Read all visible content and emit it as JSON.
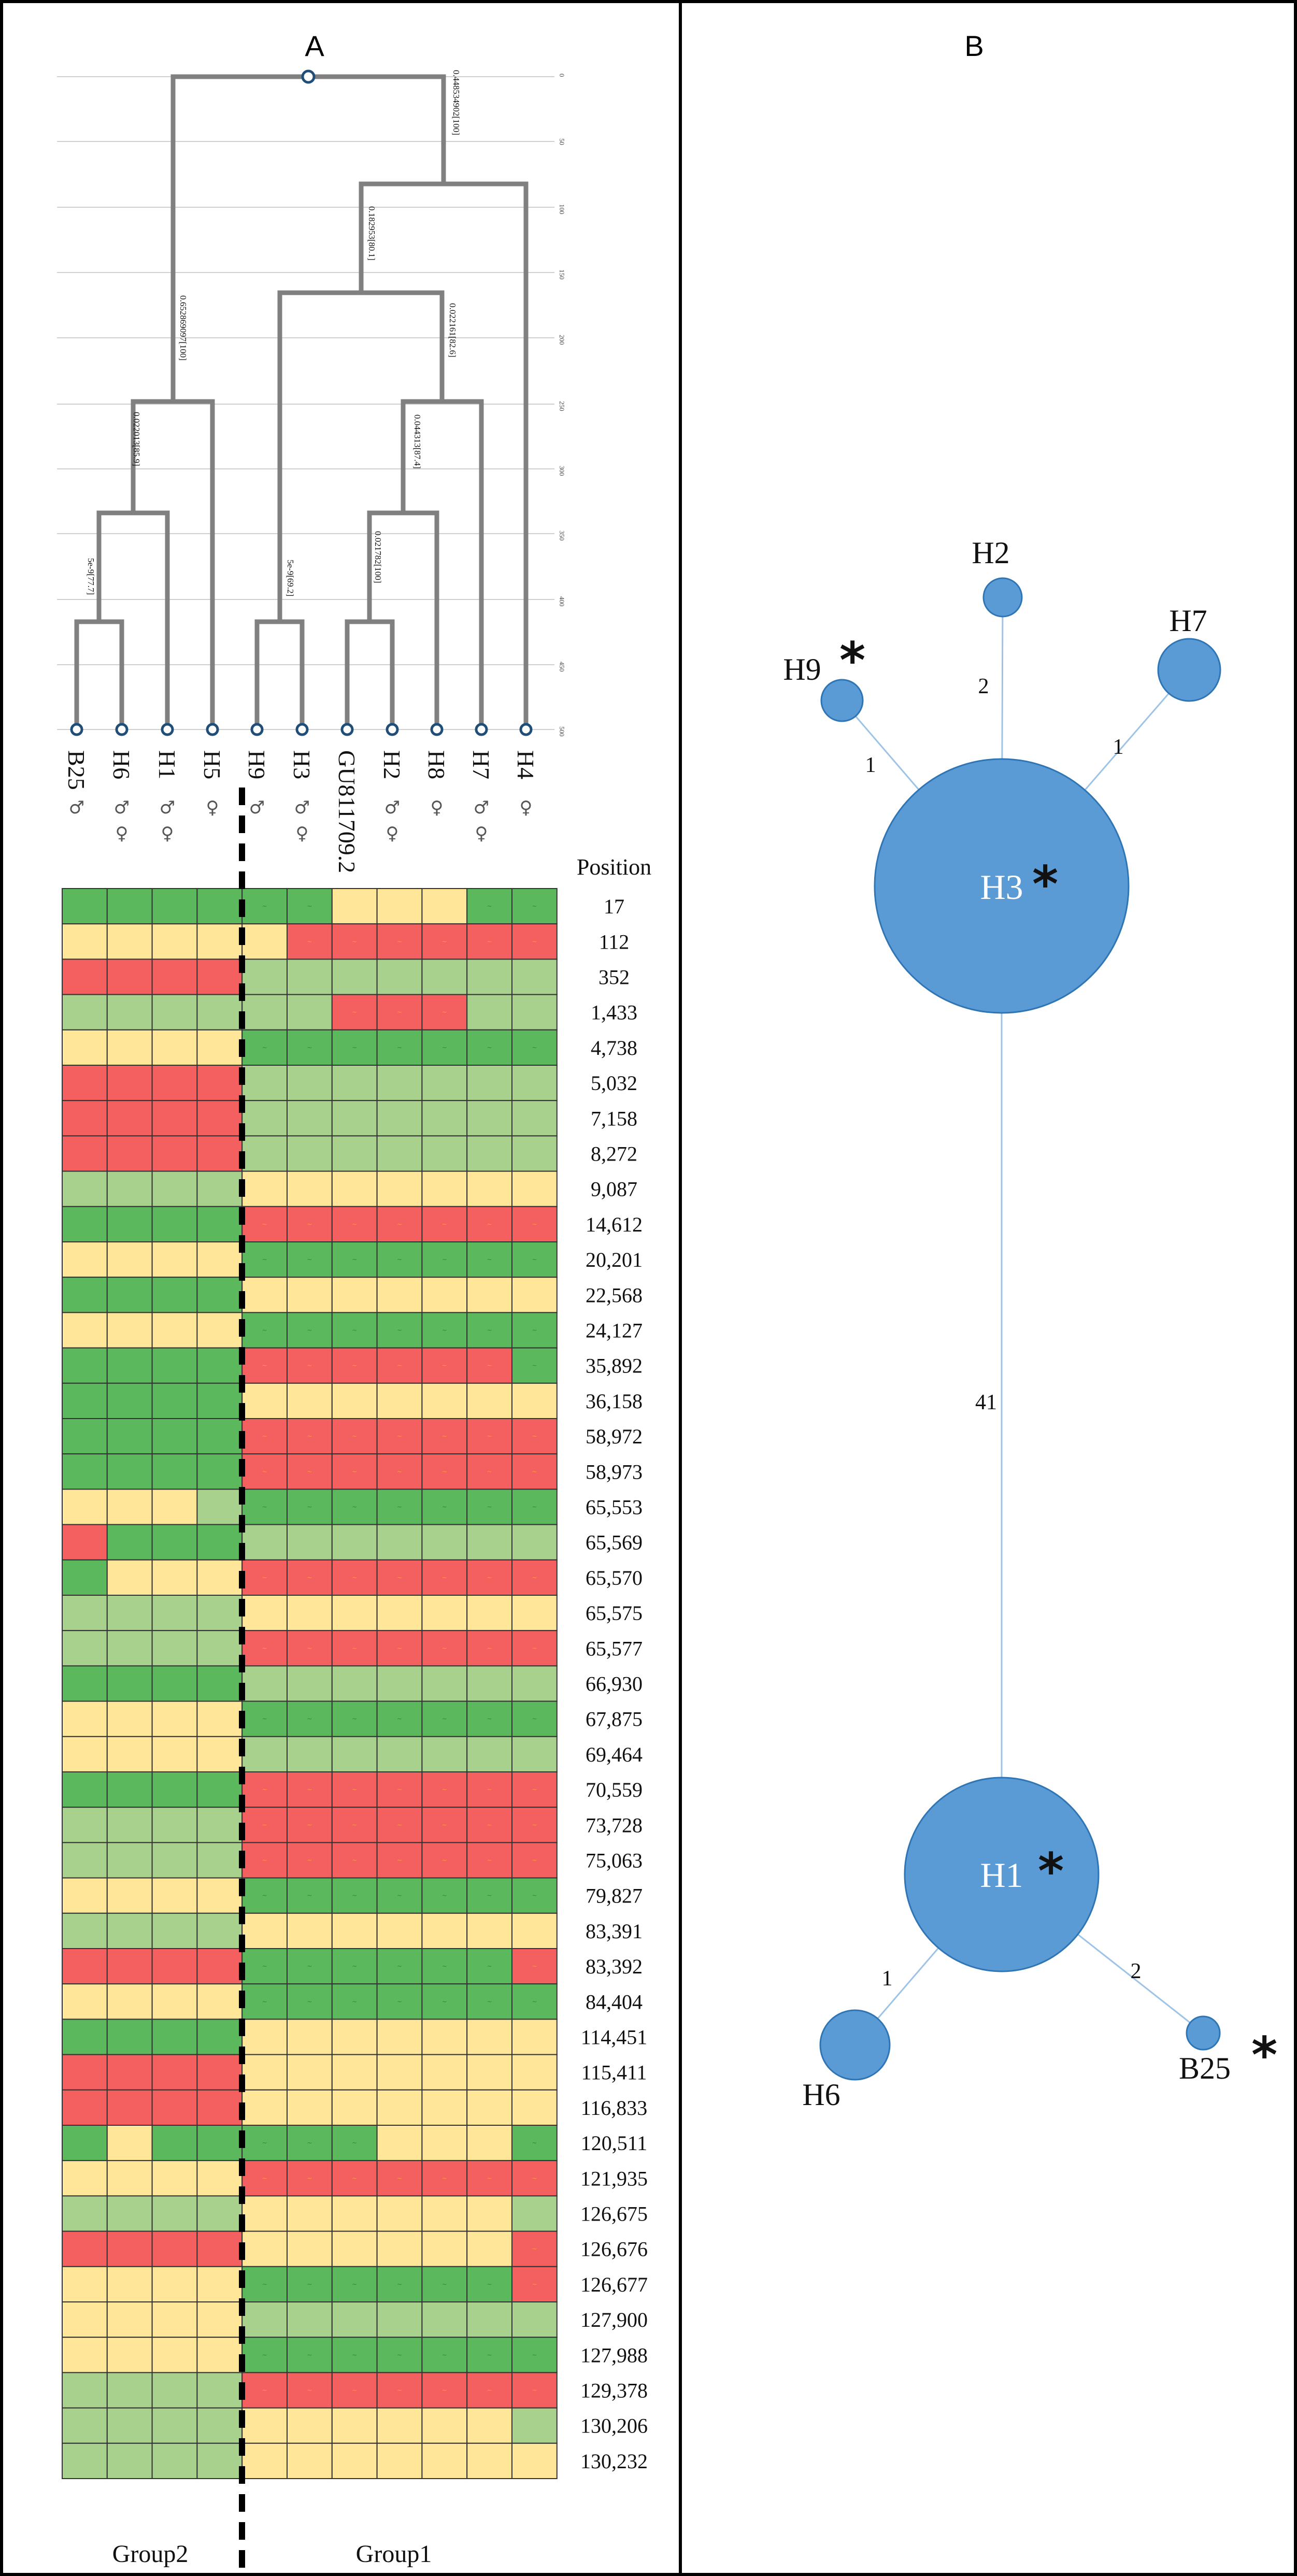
{
  "panels": {
    "a_title": "A",
    "b_title": "B"
  },
  "colors": {
    "light_green": "#a9d18e",
    "dark_green": "#5cb85c",
    "yellow": "#ffe699",
    "red": "#f4605f",
    "tree_line": "#808080",
    "node_fill": "#5b9bd5",
    "node_stroke": "#2e75b6",
    "edge": "#9dc3e6"
  },
  "tree": {
    "tips": [
      "B25",
      "H6",
      "H1",
      "H5",
      "H9",
      "H3",
      "GU811709.2",
      "H2",
      "H8",
      "H7",
      "H4"
    ],
    "axis_ticks": [
      "0",
      "50",
      "100",
      "150",
      "200",
      "250",
      "300",
      "350",
      "400",
      "450",
      "500"
    ],
    "branch_labels": {
      "root_right": "0.448534902[100]",
      "root_left": "0.652869097[100]",
      "n1": "0.182953[80.1]",
      "n2": "0.022161[82.6]",
      "n3": "0.044313[87.4]",
      "n4": "0.021782[100]",
      "h9h3": "5e-9[69.2]",
      "n_h6": "0.022013[85.9]",
      "b25h6": "5e-9[77.7]"
    }
  },
  "sex": [
    [
      "♂"
    ],
    [
      "♂",
      "♀"
    ],
    [
      "♂",
      "♀"
    ],
    [
      "♀"
    ],
    [
      "♂"
    ],
    [
      "♂",
      "♀"
    ],
    [],
    [
      "♂",
      "♀"
    ],
    [
      "♀"
    ],
    [
      "♂",
      "♀"
    ],
    [
      "♀"
    ]
  ],
  "heatmap": {
    "header": "Position",
    "positions": [
      "17",
      "112",
      "352",
      "1,433",
      "4,738",
      "5,032",
      "7,158",
      "8,272",
      "9,087",
      "14,612",
      "20,201",
      "22,568",
      "24,127",
      "35,892",
      "36,158",
      "58,972",
      "58,973",
      "65,553",
      "65,569",
      "65,570",
      "65,575",
      "65,577",
      "66,930",
      "67,875",
      "69,464",
      "70,559",
      "73,728",
      "75,063",
      "79,827",
      "83,391",
      "83,392",
      "84,404",
      "114,451",
      "115,411",
      "116,833",
      "120,511",
      "121,935",
      "126,675",
      "126,676",
      "126,677",
      "127,900",
      "127,988",
      "129,378",
      "130,206",
      "130,232"
    ],
    "legend": {
      "G": "light green",
      "D": "dark green",
      "Y": "yellow",
      "R": "red"
    },
    "rows": [
      "DDDDDDYYYDD",
      "YYYYYRRRRRR",
      "RRRRGGGGGGG",
      "GGGGGGRRRGG",
      "YYYYDDDDDDD",
      "RRRRGGGGGGG",
      "RRRRGGGGGGG",
      "RRRRGGGGGGG",
      "GGGGYYYYYYY",
      "DDDDRRRRRRR",
      "YYYYDDDDDDD",
      "DDDDYYYYYYY",
      "YYYYDDDDDDD",
      "DDDDRRRRRRD",
      "DDDDYYYYYYY",
      "DDDDRRRRRRR",
      "DDDDRRRRRRR",
      "YYYGDDDDDDD",
      "RDDDGGGGGGG",
      "DYYYRRRRRRR",
      "GGGGYYYYYYY",
      "GGGGRRRRRRR",
      "DDDDGGGGGGG",
      "YYYYDDDDDDD",
      "YYYYGGGGGGG",
      "DDDDRRRRRRR",
      "GGGGRRRRRRR",
      "GGGGRRRRRRR",
      "YYYYDDDDDDD",
      "GGGGYYYYYYY",
      "RRRRDDDDDDR",
      "YYYYDDDDDDD",
      "DDDDYYYYYYY",
      "RRRRYYYYYYY",
      "RRRRYYYYYYY",
      "DYDDDDDYYYD",
      "YYYYRRRRRRR",
      "GGGGYYYYYYG",
      "RRRRYYYYYYR",
      "YYYYDDDDDDR",
      "YYYYGGGGGGG",
      "YYYYDDDDDDD",
      "GGGGRRRRRRR",
      "GGGGYYYYYYG",
      "GGGGYYYYYYY"
    ],
    "group2_label": "Group2",
    "group1_label": "Group1"
  },
  "network": {
    "nodes": [
      {
        "id": "H3",
        "label": "H3",
        "star": "*",
        "size": 24
      },
      {
        "id": "H1",
        "label": "H1",
        "star": "*",
        "size": 14
      },
      {
        "id": "H2",
        "label": "H2",
        "star": "",
        "size": 1
      },
      {
        "id": "H9",
        "label": "H9",
        "star": "*",
        "size": 1
      },
      {
        "id": "H7",
        "label": "H7",
        "star": "",
        "size": 2
      },
      {
        "id": "H6",
        "label": "H6",
        "star": "",
        "size": 2
      },
      {
        "id": "B25",
        "label": "B25",
        "star": "*",
        "size": 1
      }
    ],
    "edges": [
      {
        "from": "H3",
        "to": "H9",
        "steps": "1"
      },
      {
        "from": "H3",
        "to": "H2",
        "steps": "2"
      },
      {
        "from": "H3",
        "to": "H7",
        "steps": "1"
      },
      {
        "from": "H3",
        "to": "H1",
        "steps": "41"
      },
      {
        "from": "H1",
        "to": "H6",
        "steps": "1"
      },
      {
        "from": "H1",
        "to": "B25",
        "steps": "2"
      }
    ]
  }
}
